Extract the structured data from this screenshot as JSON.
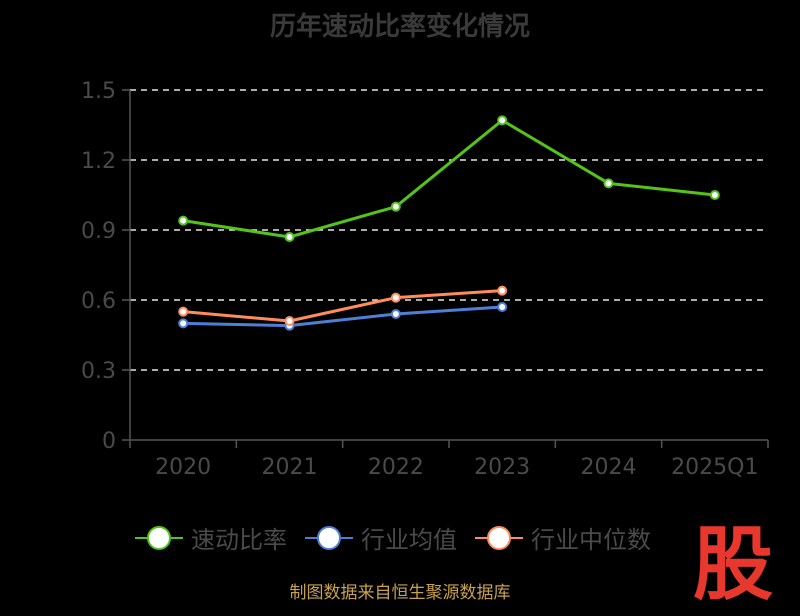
{
  "title": "历年速动比率变化情况",
  "legend": [
    {
      "label": "速动比率",
      "color": "#52c41a"
    },
    {
      "label": "行业均值",
      "color": "#4e7fd8"
    },
    {
      "label": "行业中位数",
      "color": "#ff8c5a"
    }
  ],
  "watermark_char": "股",
  "source": "制图数据来自恒生聚源数据库",
  "chart_data": {
    "type": "line",
    "title": "历年速动比率变化情况",
    "categories": [
      "2020",
      "2021",
      "2022",
      "2023",
      "2024",
      "2025Q1"
    ],
    "y_ticks": [
      "0",
      "0.3",
      "0.6",
      "0.9",
      "1.2",
      "1.5"
    ],
    "ylim": [
      0,
      1.5
    ],
    "grid": true,
    "legend_position": "bottom",
    "series": [
      {
        "name": "速动比率",
        "color": "#52c41a",
        "values": [
          0.94,
          0.87,
          1.0,
          1.37,
          1.1,
          1.05
        ]
      },
      {
        "name": "行业均值",
        "color": "#4e7fd8",
        "values": [
          0.5,
          0.49,
          0.54,
          0.57,
          null,
          null
        ]
      },
      {
        "name": "行业中位数",
        "color": "#ff8c5a",
        "values": [
          0.55,
          0.51,
          0.61,
          0.64,
          null,
          null
        ]
      }
    ]
  }
}
